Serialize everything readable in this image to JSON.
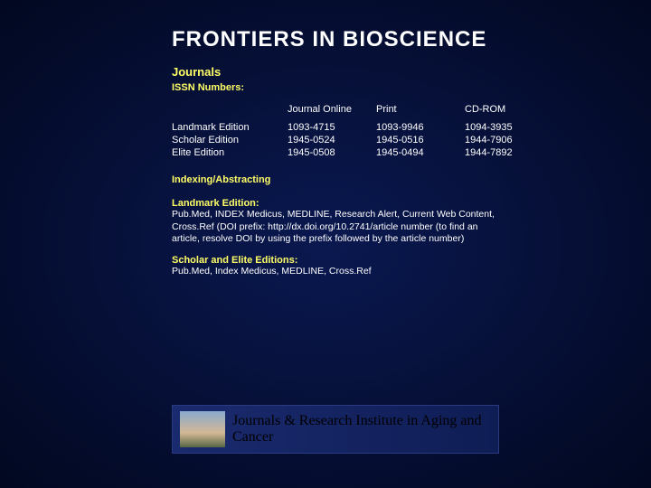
{
  "title": "FRONTIERS IN BIOSCIENCE",
  "journals_label": "Journals",
  "issn_label": "ISSN Numbers:",
  "table": {
    "headers": [
      "",
      "Journal Online",
      "Print",
      "CD-ROM"
    ],
    "rows": [
      [
        "Landmark Edition",
        "1093-4715",
        "1093-9946",
        "1094-3935"
      ],
      [
        "Scholar Edition",
        "1945-0524",
        "1945-0516",
        "1944-7906"
      ],
      [
        "Elite Edition",
        "1945-0508",
        "1945-0494",
        "1944-7892"
      ]
    ]
  },
  "indexing_label": "Indexing/Abstracting",
  "landmark_title": "Landmark Edition:",
  "landmark_text": "Pub.Med, INDEX Medicus, MEDLINE, Research Alert, Current Web Content, Cross.Ref (DOI prefix: http://dx.doi.org/10.2741/article number (to find an article, resolve DOI by using the prefix followed by the article number)",
  "scholar_title": "Scholar and Elite Editions:",
  "scholar_text": "Pub.Med, Index Medicus, MEDLINE, Cross.Ref",
  "footer_text": "Journals & Research Institute in Aging and Cancer",
  "colors": {
    "bg_center": "#0a1850",
    "bg_edge": "#020820",
    "text": "#ffffff",
    "accent": "#ffff66",
    "footer_bg1": "#1a2a6e",
    "footer_bg2": "#0f1d55",
    "footer_text": "#000000"
  }
}
